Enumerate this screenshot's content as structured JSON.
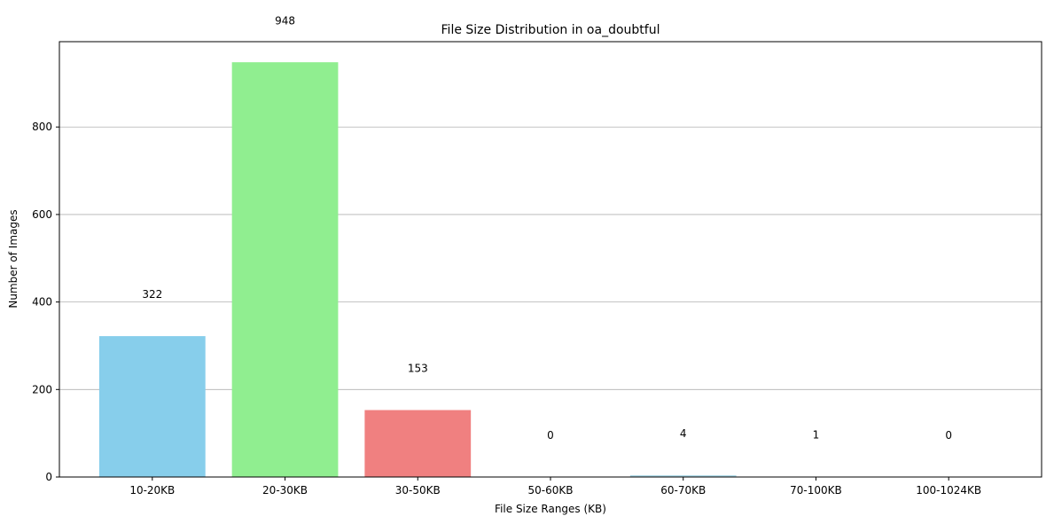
{
  "chart_data": {
    "type": "bar",
    "title": "File Size Distribution in oa_doubtful",
    "xlabel": "File Size Ranges (KB)",
    "ylabel": "Number of Images",
    "categories": [
      "10-20KB",
      "20-30KB",
      "30-50KB",
      "50-60KB",
      "60-70KB",
      "70-100KB",
      "100-1024KB"
    ],
    "values": [
      322,
      948,
      153,
      0,
      4,
      1,
      0
    ],
    "colors": [
      "#87CEEB",
      "#90EE90",
      "#F08080",
      "#FFD700",
      "#ADD8E6",
      "#FFA500",
      "#DDA0DD"
    ],
    "ylim": [
      0,
      995
    ],
    "yticks": [
      0,
      200,
      400,
      600,
      800
    ],
    "grid": "y",
    "data_label_offset": 95
  }
}
